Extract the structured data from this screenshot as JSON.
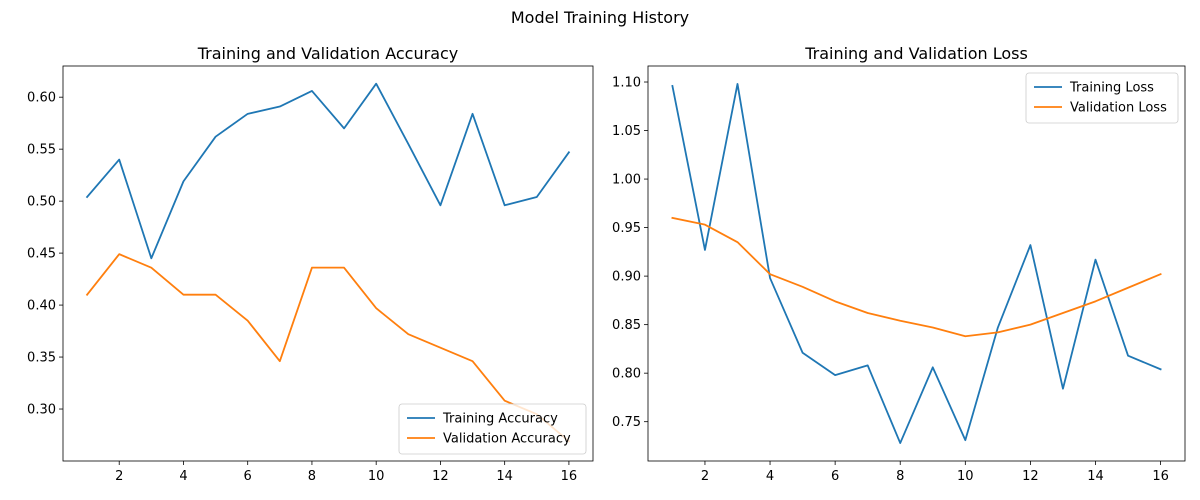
{
  "suptitle": "Model Training History",
  "chart_data": [
    {
      "type": "line",
      "title": "Training and Validation Accuracy",
      "xlabel": "",
      "ylabel": "",
      "x": [
        1,
        2,
        3,
        4,
        5,
        6,
        7,
        8,
        9,
        10,
        11,
        12,
        13,
        14,
        15,
        16
      ],
      "xlim": [
        0.25,
        16.75
      ],
      "ylim": [
        0.25,
        0.63
      ],
      "xticks": [
        2,
        4,
        6,
        8,
        10,
        12,
        14,
        16
      ],
      "yticks": [
        0.3,
        0.35,
        0.4,
        0.45,
        0.5,
        0.55,
        0.6
      ],
      "ytick_decimals": 2,
      "legend": "lower right",
      "grid": false,
      "series": [
        {
          "name": "Training Accuracy",
          "color": "#1f77b4",
          "values": [
            0.504,
            0.54,
            0.445,
            0.519,
            0.562,
            0.584,
            0.591,
            0.606,
            0.57,
            0.613,
            0.555,
            0.496,
            0.584,
            0.496,
            0.504,
            0.547
          ]
        },
        {
          "name": "Validation Accuracy",
          "color": "#ff7f0e",
          "values": [
            0.41,
            0.449,
            0.436,
            0.41,
            0.41,
            0.385,
            0.346,
            0.436,
            0.436,
            0.397,
            0.372,
            0.359,
            0.346,
            0.308,
            0.295,
            0.269
          ]
        }
      ]
    },
    {
      "type": "line",
      "title": "Training and Validation Loss",
      "xlabel": "",
      "ylabel": "",
      "x": [
        1,
        2,
        3,
        4,
        5,
        6,
        7,
        8,
        9,
        10,
        11,
        12,
        13,
        14,
        15,
        16
      ],
      "xlim": [
        0.25,
        16.75
      ],
      "ylim": [
        0.7095,
        1.1165
      ],
      "xticks": [
        2,
        4,
        6,
        8,
        10,
        12,
        14,
        16
      ],
      "yticks": [
        0.75,
        0.8,
        0.85,
        0.9,
        0.95,
        1.0,
        1.05,
        1.1
      ],
      "ytick_decimals": 2,
      "legend": "upper right",
      "grid": false,
      "series": [
        {
          "name": "Training Loss",
          "color": "#1f77b4",
          "values": [
            1.096,
            0.927,
            1.098,
            0.898,
            0.821,
            0.798,
            0.808,
            0.728,
            0.806,
            0.731,
            0.847,
            0.932,
            0.784,
            0.917,
            0.818,
            0.804
          ]
        },
        {
          "name": "Validation Loss",
          "color": "#ff7f0e",
          "values": [
            0.96,
            0.953,
            0.935,
            0.902,
            0.889,
            0.874,
            0.862,
            0.854,
            0.847,
            0.838,
            0.842,
            0.85,
            0.862,
            0.874,
            0.888,
            0.902
          ]
        }
      ]
    }
  ]
}
